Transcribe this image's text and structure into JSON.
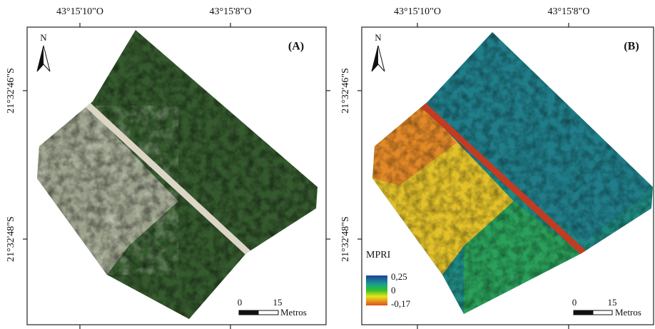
{
  "panels": [
    {
      "label": "(A)",
      "north": "N",
      "top_coords": [
        "43°15'10\"O",
        "43°15'8\"O"
      ],
      "left_coords": [
        "21°32'46\"S",
        "21°32'48\"S"
      ],
      "scale": {
        "start": "0",
        "mid": "15",
        "unit": "Metros"
      }
    },
    {
      "label": "(B)",
      "north": "N",
      "top_coords": [
        "43°15'10\"O",
        "43°15'8\"O"
      ],
      "left_coords": [
        "21°32'46\"S",
        "21°32'48\"S"
      ],
      "scale": {
        "start": "0",
        "mid": "15",
        "unit": "Metros"
      },
      "legend": {
        "title": "MPRI",
        "max": "0,25",
        "mid": "0",
        "min": "-0,17"
      }
    }
  ]
}
